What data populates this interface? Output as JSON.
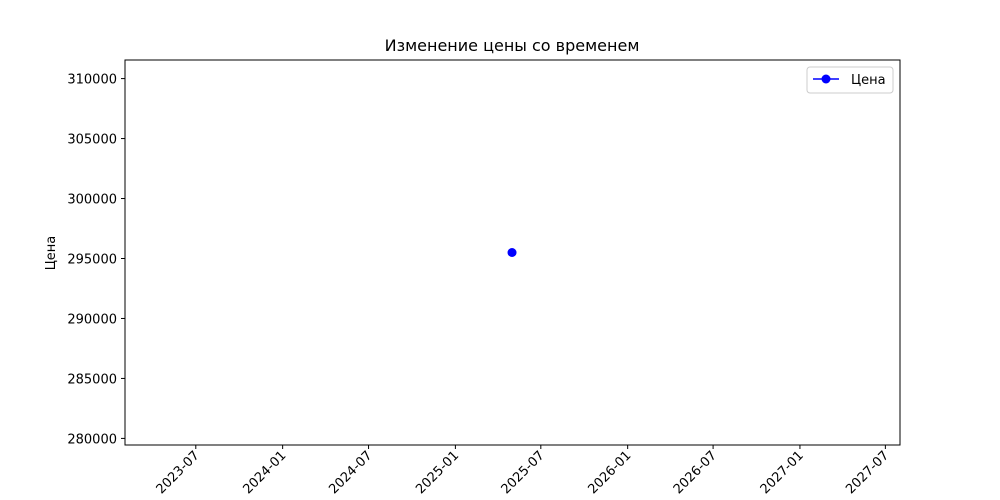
{
  "chart_data": {
    "type": "line",
    "title": "Изменение цены со временем",
    "xlabel": "",
    "ylabel": "Цена",
    "series": [
      {
        "name": "Цена",
        "color": "#0000ff",
        "marker": "circle",
        "x": [
          "2025-05-01"
        ],
        "y": [
          295500
        ]
      }
    ],
    "x_ticks": [
      "2023-07",
      "2024-01",
      "2024-07",
      "2025-01",
      "2025-07",
      "2026-01",
      "2026-07",
      "2027-01",
      "2027-07"
    ],
    "y_ticks": [
      280000,
      285000,
      290000,
      295000,
      300000,
      305000,
      310000
    ],
    "xlim": [
      "2023-02-01",
      "2027-08-01"
    ],
    "ylim": [
      279450,
      311550
    ],
    "grid": false,
    "legend": "top-right"
  }
}
